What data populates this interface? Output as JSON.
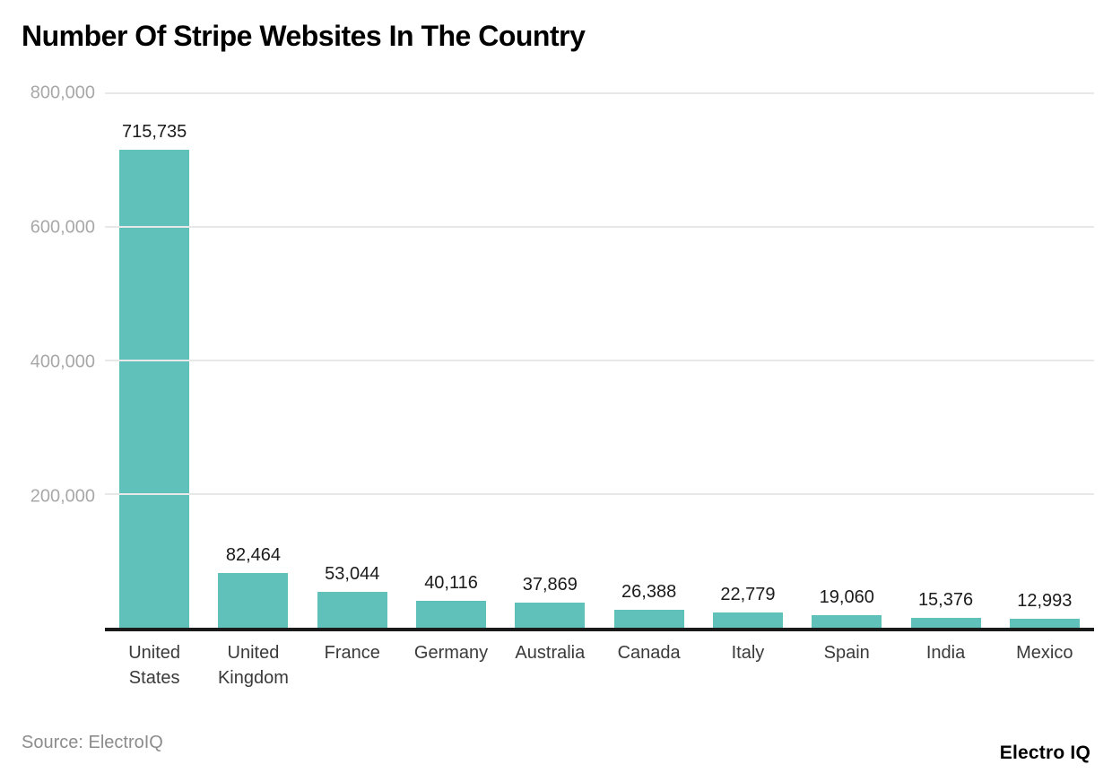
{
  "title": "Number Of Stripe Websites In The Country",
  "footer": {
    "source": "Source: ElectroIQ",
    "brand": "Electro IQ"
  },
  "colors": {
    "bar": "#60c0ba",
    "gridline": "#e8e8e8",
    "axis_line": "#1a1a1a",
    "ytick_text": "#a8a8a8",
    "xtick_text": "#3a3a3a",
    "value_label_text": "#1b1b1b",
    "title_text": "#000000",
    "source_text": "#8c8c8c",
    "background": "#ffffff"
  },
  "chart_data": {
    "type": "bar",
    "title": "Number Of Stripe Websites In The Country",
    "categories": [
      "United States",
      "United Kingdom",
      "France",
      "Germany",
      "Australia",
      "Canada",
      "Italy",
      "Spain",
      "India",
      "Mexico"
    ],
    "values": [
      715735,
      82464,
      53044,
      40116,
      37869,
      26388,
      22779,
      19060,
      15376,
      12993
    ],
    "value_labels": [
      "715,735",
      "82,464",
      "53,044",
      "40,116",
      "37,869",
      "26,388",
      "22,779",
      "19,060",
      "15,376",
      "12,993"
    ],
    "xlabel": "",
    "ylabel": "",
    "ylim": [
      0,
      800000
    ],
    "yticks": [
      800000,
      600000,
      400000,
      200000
    ],
    "ytick_labels": [
      "800,000",
      "600,000",
      "400,000",
      "200,000"
    ],
    "grid": true,
    "legend": false,
    "bar_color": "#60c0ba"
  }
}
